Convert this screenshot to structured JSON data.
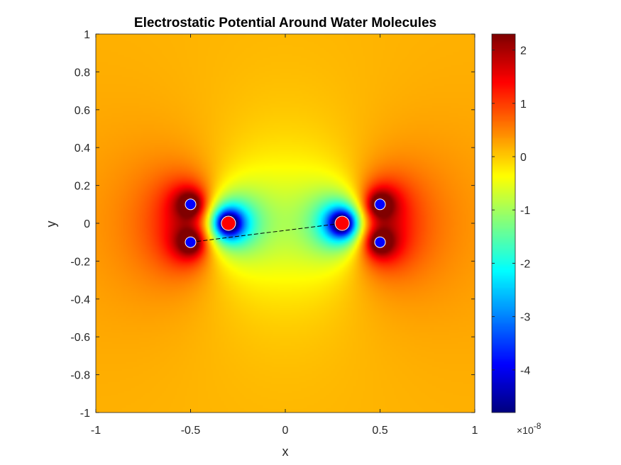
{
  "chart_data": {
    "type": "heatmap",
    "title": "Electrostatic Potential Around Water Molecules",
    "xlabel": "x",
    "ylabel": "y",
    "xlim": [
      -1,
      1
    ],
    "ylim": [
      -1,
      1
    ],
    "x_ticks": [
      -1,
      -0.5,
      0,
      0.5,
      1
    ],
    "x_tick_labels": [
      "-1",
      "-0.5",
      "0",
      "0.5",
      "1"
    ],
    "y_ticks": [
      -1,
      -0.8,
      -0.6,
      -0.4,
      -0.2,
      0,
      0.2,
      0.4,
      0.6,
      0.8,
      1
    ],
    "y_tick_labels": [
      "-1",
      "-0.8",
      "-0.6",
      "-0.4",
      "-0.2",
      "0",
      "0.2",
      "0.4",
      "0.6",
      "0.8",
      "1"
    ],
    "colormap": "jet",
    "color_limits": [
      -4.8,
      2.3
    ],
    "colorbar": {
      "ticks": [
        2,
        1,
        0,
        -1,
        -2,
        -3,
        -4
      ],
      "tick_labels": [
        "2",
        "1",
        "0",
        "-1",
        "-2",
        "-3",
        "-4"
      ],
      "exponent_base": "×10",
      "exponent_power": "-8"
    },
    "atoms": [
      {
        "x": -0.3,
        "y": 0,
        "color": "#ff0000"
      },
      {
        "x": -0.5,
        "y": 0.1,
        "color": "#0000ff"
      },
      {
        "x": -0.5,
        "y": -0.1,
        "color": "#0000ff"
      },
      {
        "x": 0.3,
        "y": 0,
        "color": "#ff0000"
      },
      {
        "x": 0.5,
        "y": 0.1,
        "color": "#0000ff"
      },
      {
        "x": 0.5,
        "y": -0.1,
        "color": "#0000ff"
      }
    ],
    "dashed_line": {
      "x": [
        -0.5,
        0.3
      ],
      "y": [
        -0.1,
        0
      ]
    }
  }
}
